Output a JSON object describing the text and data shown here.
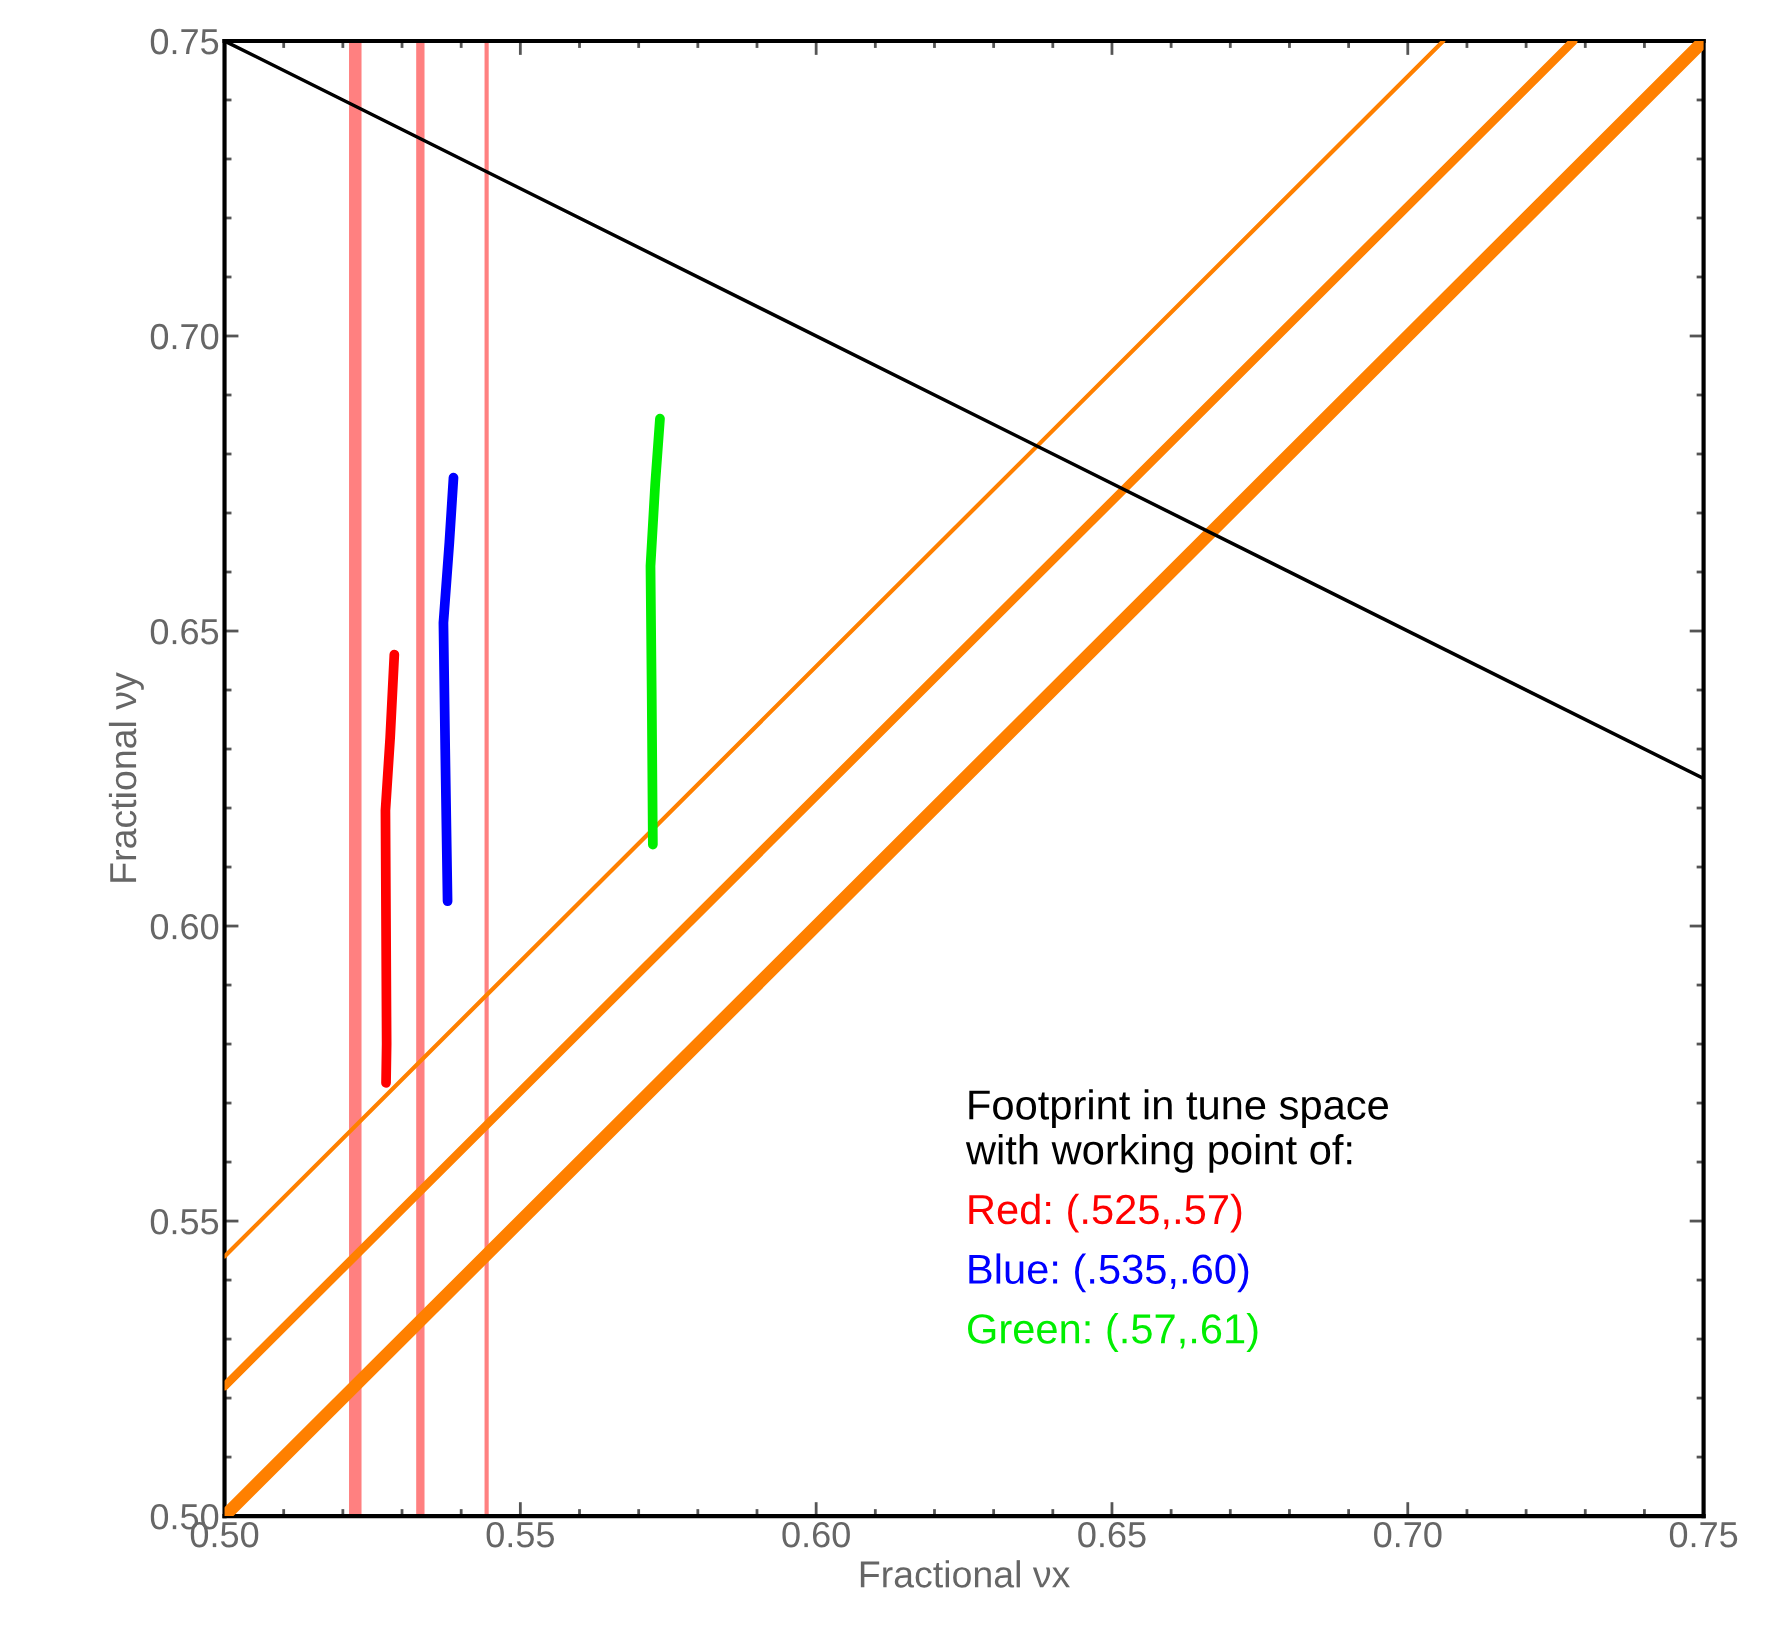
{
  "chart_data": {
    "type": "line",
    "xlabel": "Fractional νx",
    "ylabel": "Fractional νy",
    "xlim": [
      0.5,
      0.75
    ],
    "ylim": [
      0.5,
      0.75
    ],
    "xticks": [
      {
        "value": 0.5,
        "label": "0.50"
      },
      {
        "value": 0.55,
        "label": "0.55"
      },
      {
        "value": 0.6,
        "label": "0.60"
      },
      {
        "value": 0.65,
        "label": "0.65"
      },
      {
        "value": 0.7,
        "label": "0.70"
      },
      {
        "value": 0.75,
        "label": "0.75"
      }
    ],
    "yticks": [
      {
        "value": 0.5,
        "label": "0.50"
      },
      {
        "value": 0.55,
        "label": "0.55"
      },
      {
        "value": 0.6,
        "label": "0.60"
      },
      {
        "value": 0.65,
        "label": "0.65"
      },
      {
        "value": 0.7,
        "label": "0.70"
      },
      {
        "value": 0.75,
        "label": "0.75"
      }
    ],
    "grid": false,
    "legend": "bottom right",
    "legend_title": "Footprint in tune space\nwith working point of:",
    "marker": "none",
    "line_style": "solid",
    "ref_lines": [
      {
        "axis": "x",
        "value": 0.5221,
        "color": "#ff8080"
      },
      {
        "axis": "x",
        "value": 0.5331,
        "color": "#ff8080"
      },
      {
        "axis": "x",
        "value": 0.5443,
        "color": "#ff8080"
      }
    ],
    "series": [
      {
        "color": "#ff8000",
        "x": [
          0.5,
          0.706
        ],
        "values": [
          0.544,
          0.75
        ]
      },
      {
        "color": "#ff8000",
        "x": [
          0.5,
          0.728
        ],
        "values": [
          0.522,
          0.75
        ]
      },
      {
        "color": "#ff8000",
        "x": [
          0.5,
          0.75
        ],
        "values": [
          0.5,
          0.75
        ]
      },
      {
        "color": "#000000",
        "x": [
          0.5,
          0.75
        ],
        "values": [
          0.75,
          0.625
        ]
      },
      {
        "name": "Red: (.525,.57)",
        "color": "#ff0000",
        "x": [
          0.5287,
          0.528,
          0.5272,
          0.5273,
          0.5274,
          0.5273
        ],
        "values": [
          0.646,
          0.632,
          0.6196,
          0.6,
          0.58,
          0.5734
        ]
      },
      {
        "name": "Blue: (.535,.60)",
        "color": "#0000ff",
        "x": [
          0.5387,
          0.538,
          0.537,
          0.5373,
          0.5377
        ],
        "values": [
          0.676,
          0.665,
          0.6514,
          0.63,
          0.6042
        ]
      },
      {
        "name": "Green: (.57,.61)",
        "color": "#00ee00",
        "x": [
          0.5736,
          0.5728,
          0.572,
          0.5722,
          0.5724
        ],
        "values": [
          0.686,
          0.675,
          0.661,
          0.64,
          0.6138
        ]
      }
    ]
  }
}
